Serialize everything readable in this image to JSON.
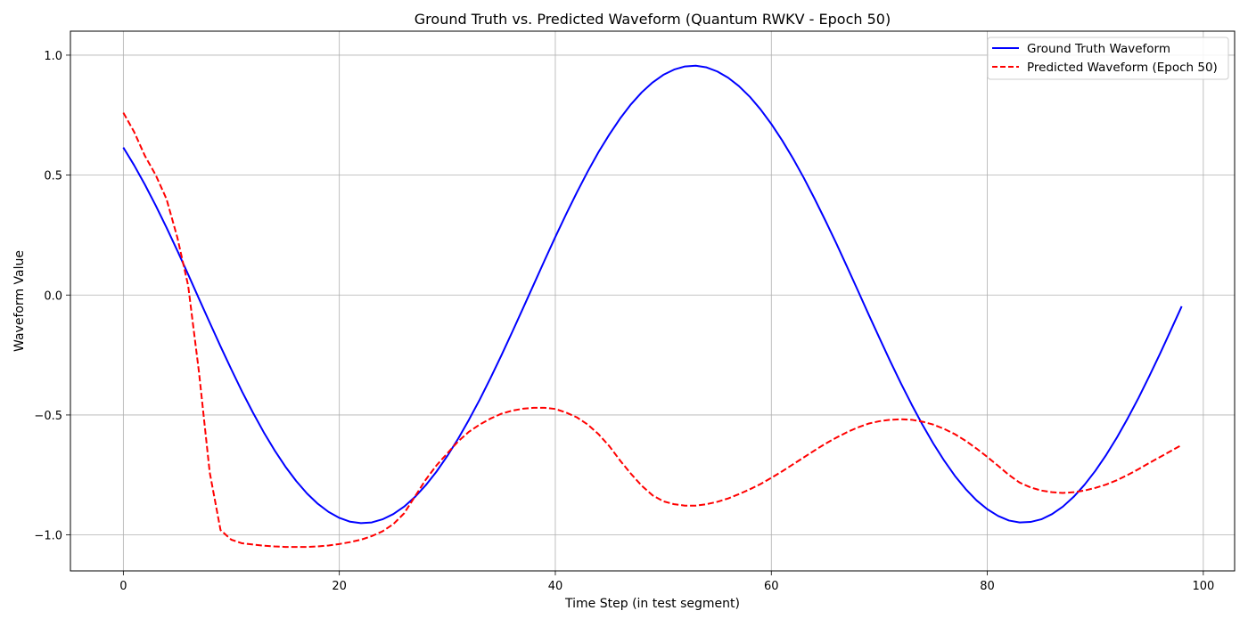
{
  "chart_data": {
    "type": "line",
    "title": "Ground Truth vs. Predicted Waveform (Quantum RWKV - Epoch 50)",
    "xlabel": "Time Step (in test segment)",
    "ylabel": "Waveform Value",
    "xlim": [
      -4.9,
      102.9
    ],
    "ylim": [
      -1.15,
      1.1
    ],
    "xticks": [
      0,
      20,
      40,
      60,
      80,
      100
    ],
    "xtick_labels": [
      "0",
      "20",
      "40",
      "60",
      "80",
      "100"
    ],
    "yticks": [
      -1.0,
      -0.5,
      0.0,
      0.5,
      1.0
    ],
    "ytick_labels": [
      "−1.0",
      "−0.5",
      "0.0",
      "0.5",
      "1.0"
    ],
    "grid": true,
    "legend_position": "top-right",
    "x": [
      0,
      1,
      2,
      3,
      4,
      5,
      6,
      7,
      8,
      9,
      10,
      11,
      12,
      13,
      14,
      15,
      16,
      17,
      18,
      19,
      20,
      21,
      22,
      23,
      24,
      25,
      26,
      27,
      28,
      29,
      30,
      31,
      32,
      33,
      34,
      35,
      36,
      37,
      38,
      39,
      40,
      41,
      42,
      43,
      44,
      45,
      46,
      47,
      48,
      49,
      50,
      51,
      52,
      53,
      54,
      55,
      56,
      57,
      58,
      59,
      60,
      61,
      62,
      63,
      64,
      65,
      66,
      67,
      68,
      69,
      70,
      71,
      72,
      73,
      74,
      75,
      76,
      77,
      78,
      79,
      80,
      81,
      82,
      83,
      84,
      85,
      86,
      87,
      88,
      89,
      90,
      91,
      92,
      93,
      94,
      95,
      96,
      97,
      98
    ],
    "series": [
      {
        "name": "Ground Truth Waveform",
        "color": "#0000ff",
        "style": "solid",
        "values": [
          0.615,
          0.541,
          0.46,
          0.373,
          0.281,
          0.185,
          0.086,
          -0.015,
          -0.115,
          -0.214,
          -0.31,
          -0.403,
          -0.49,
          -0.572,
          -0.647,
          -0.715,
          -0.775,
          -0.827,
          -0.87,
          -0.904,
          -0.929,
          -0.945,
          -0.951,
          -0.948,
          -0.935,
          -0.913,
          -0.882,
          -0.842,
          -0.793,
          -0.736,
          -0.671,
          -0.599,
          -0.52,
          -0.436,
          -0.346,
          -0.252,
          -0.155,
          -0.056,
          0.044,
          0.144,
          0.242,
          0.337,
          0.428,
          0.515,
          0.596,
          0.669,
          0.736,
          0.795,
          0.845,
          0.886,
          0.918,
          0.94,
          0.953,
          0.956,
          0.949,
          0.932,
          0.906,
          0.871,
          0.827,
          0.774,
          0.713,
          0.645,
          0.57,
          0.489,
          0.402,
          0.311,
          0.217,
          0.119,
          0.02,
          -0.08,
          -0.178,
          -0.275,
          -0.368,
          -0.457,
          -0.541,
          -0.619,
          -0.69,
          -0.754,
          -0.809,
          -0.856,
          -0.893,
          -0.921,
          -0.94,
          -0.948,
          -0.946,
          -0.935,
          -0.913,
          -0.882,
          -0.841,
          -0.791,
          -0.733,
          -0.667,
          -0.594,
          -0.514,
          -0.429,
          -0.338,
          -0.244,
          -0.146,
          -0.047
        ]
      },
      {
        "name": "Predicted Waveform (Epoch 50)",
        "color": "#ff0000",
        "style": "dashed",
        "values": [
          0.76,
          0.68,
          0.58,
          0.5,
          0.4,
          0.24,
          0.04,
          -0.32,
          -0.74,
          -0.98,
          -1.02,
          -1.035,
          -1.04,
          -1.045,
          -1.048,
          -1.05,
          -1.05,
          -1.05,
          -1.048,
          -1.044,
          -1.038,
          -1.03,
          -1.02,
          -1.005,
          -0.985,
          -0.955,
          -0.91,
          -0.84,
          -0.77,
          -0.71,
          -0.66,
          -0.61,
          -0.57,
          -0.54,
          -0.515,
          -0.495,
          -0.482,
          -0.474,
          -0.47,
          -0.47,
          -0.475,
          -0.49,
          -0.51,
          -0.54,
          -0.58,
          -0.63,
          -0.69,
          -0.745,
          -0.795,
          -0.835,
          -0.86,
          -0.872,
          -0.878,
          -0.878,
          -0.872,
          -0.862,
          -0.848,
          -0.83,
          -0.81,
          -0.788,
          -0.762,
          -0.735,
          -0.706,
          -0.677,
          -0.648,
          -0.62,
          -0.595,
          -0.572,
          -0.552,
          -0.536,
          -0.526,
          -0.52,
          -0.518,
          -0.52,
          -0.528,
          -0.54,
          -0.558,
          -0.58,
          -0.608,
          -0.64,
          -0.675,
          -0.712,
          -0.75,
          -0.782,
          -0.802,
          -0.815,
          -0.822,
          -0.825,
          -0.822,
          -0.815,
          -0.804,
          -0.79,
          -0.772,
          -0.75,
          -0.726,
          -0.7,
          -0.675,
          -0.65,
          -0.625
        ]
      }
    ]
  }
}
